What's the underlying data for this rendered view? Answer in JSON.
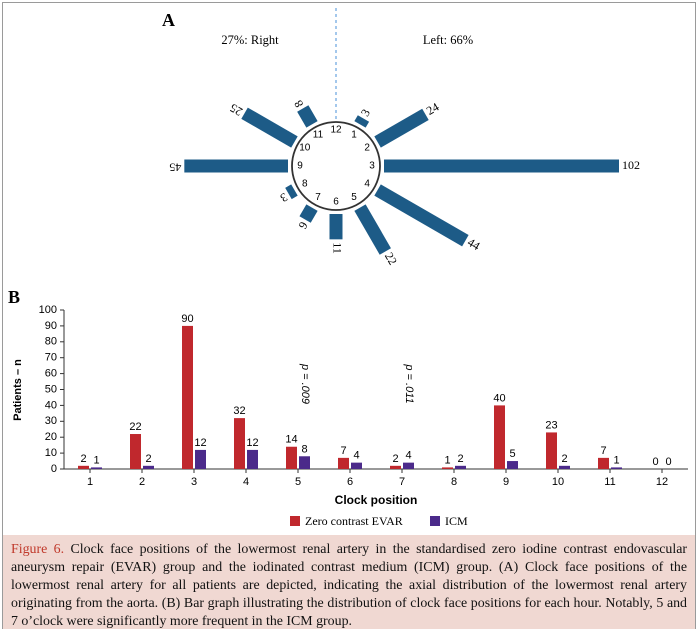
{
  "chart_data": [
    {
      "type": "radial-bar",
      "panel_label": "A",
      "left_label": "27%: Right",
      "right_label": "Left: 66%",
      "bar_color": "#1d5b87",
      "clock_numbers": [
        "12",
        "1",
        "2",
        "3",
        "4",
        "5",
        "6",
        "7",
        "8",
        "9",
        "10",
        "11"
      ],
      "categories": [
        "12",
        "1",
        "2",
        "3",
        "4",
        "5",
        "6",
        "7",
        "8",
        "9",
        "10",
        "11"
      ],
      "values": [
        0,
        3,
        24,
        102,
        44,
        22,
        11,
        6,
        3,
        45,
        25,
        8
      ],
      "value_labels": [
        "",
        "3",
        "24",
        "102",
        "44",
        "22",
        "11",
        "6",
        "3",
        "45",
        "25",
        "8"
      ]
    },
    {
      "type": "bar",
      "panel_label": "B",
      "categories": [
        "1",
        "2",
        "3",
        "4",
        "5",
        "6",
        "7",
        "8",
        "9",
        "10",
        "11",
        "12"
      ],
      "series": [
        {
          "name": "Zero contrast EVAR",
          "color": "#c0282d",
          "values": [
            2,
            22,
            90,
            32,
            14,
            7,
            2,
            1,
            40,
            23,
            7,
            0
          ]
        },
        {
          "name": "ICM",
          "color": "#4b2a8a",
          "values": [
            1,
            2,
            12,
            12,
            8,
            4,
            4,
            2,
            5,
            2,
            1,
            0
          ]
        }
      ],
      "xlabel": "Clock position",
      "ylabel": "Patients – n",
      "ylim": [
        0,
        100
      ],
      "yticks": [
        "0",
        "10",
        "20",
        "30",
        "40",
        "50",
        "60",
        "70",
        "80",
        "90",
        "100"
      ],
      "annotations": [
        {
          "category": "5",
          "text": "p = .009"
        },
        {
          "category": "7",
          "text": "p = .011"
        }
      ]
    }
  ],
  "caption": {
    "label": "Figure 6.",
    "text": "Clock face positions of the lowermost renal artery in the standardised zero iodine contrast endovascular aneurysm repair (EVAR) group and the iodinated contrast medium (ICM) group. (A) Clock face positions of the lowermost renal artery for all patients are depicted, indicating the axial distribution of the lowermost renal artery originating from the aorta. (B) Bar graph illustrating the distribution of clock face positions for each hour. Notably, 5 and 7 o’clock were significantly more frequent in the ICM group."
  }
}
